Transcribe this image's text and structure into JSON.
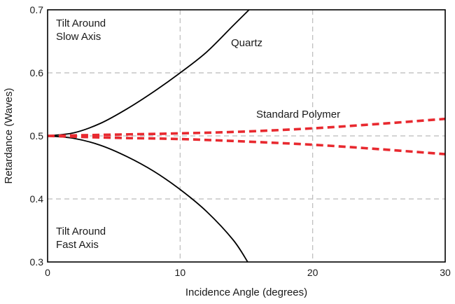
{
  "chart_data": {
    "type": "line",
    "title": "",
    "xlabel": "Incidence Angle (degrees)",
    "ylabel": "Retardance (Waves)",
    "xlim": [
      0,
      30
    ],
    "ylim": [
      0.3,
      0.7
    ],
    "xticks": [
      "0",
      "10",
      "20",
      "30"
    ],
    "yticks": [
      "0.3",
      "0.4",
      "0.5",
      "0.6",
      "0.7"
    ],
    "xtick_values": [
      0,
      10,
      20,
      30
    ],
    "ytick_values": [
      0.3,
      0.4,
      0.5,
      0.6,
      0.7
    ],
    "grid": true,
    "series": [
      {
        "label_group": "quartz",
        "color": "#000000",
        "style": "solid",
        "x": [
          0,
          2,
          4,
          6,
          8,
          10,
          12,
          14,
          15.2
        ],
        "y": [
          0.5,
          0.505,
          0.52,
          0.543,
          0.57,
          0.6,
          0.633,
          0.675,
          0.7
        ]
      },
      {
        "label_group": "quartz",
        "color": "#000000",
        "style": "solid",
        "x": [
          0,
          2,
          4,
          6,
          8,
          10,
          12,
          14,
          15.1
        ],
        "y": [
          0.5,
          0.496,
          0.485,
          0.467,
          0.444,
          0.415,
          0.38,
          0.335,
          0.3
        ]
      },
      {
        "label_group": "polymer",
        "color": "#e8292f",
        "style": "dashed",
        "x": [
          0,
          5,
          10,
          15,
          20,
          25,
          30
        ],
        "y": [
          0.5,
          0.502,
          0.504,
          0.507,
          0.512,
          0.519,
          0.527
        ]
      },
      {
        "label_group": "polymer",
        "color": "#e8292f",
        "style": "dashed",
        "x": [
          0,
          5,
          10,
          15,
          20,
          25,
          30
        ],
        "y": [
          0.5,
          0.497,
          0.495,
          0.491,
          0.486,
          0.479,
          0.471
        ]
      }
    ],
    "annotations": {
      "slow_axis": [
        "Tilt Around",
        "Slow Axis"
      ],
      "fast_axis": [
        "Tilt Around",
        "Fast Axis"
      ],
      "quartz": "Quartz",
      "polymer": "Standard Polymer"
    },
    "colors": {
      "axis": "#000000",
      "grid": "#bbbbbb",
      "polymer": "#e8292f",
      "quartz": "#000000"
    }
  }
}
